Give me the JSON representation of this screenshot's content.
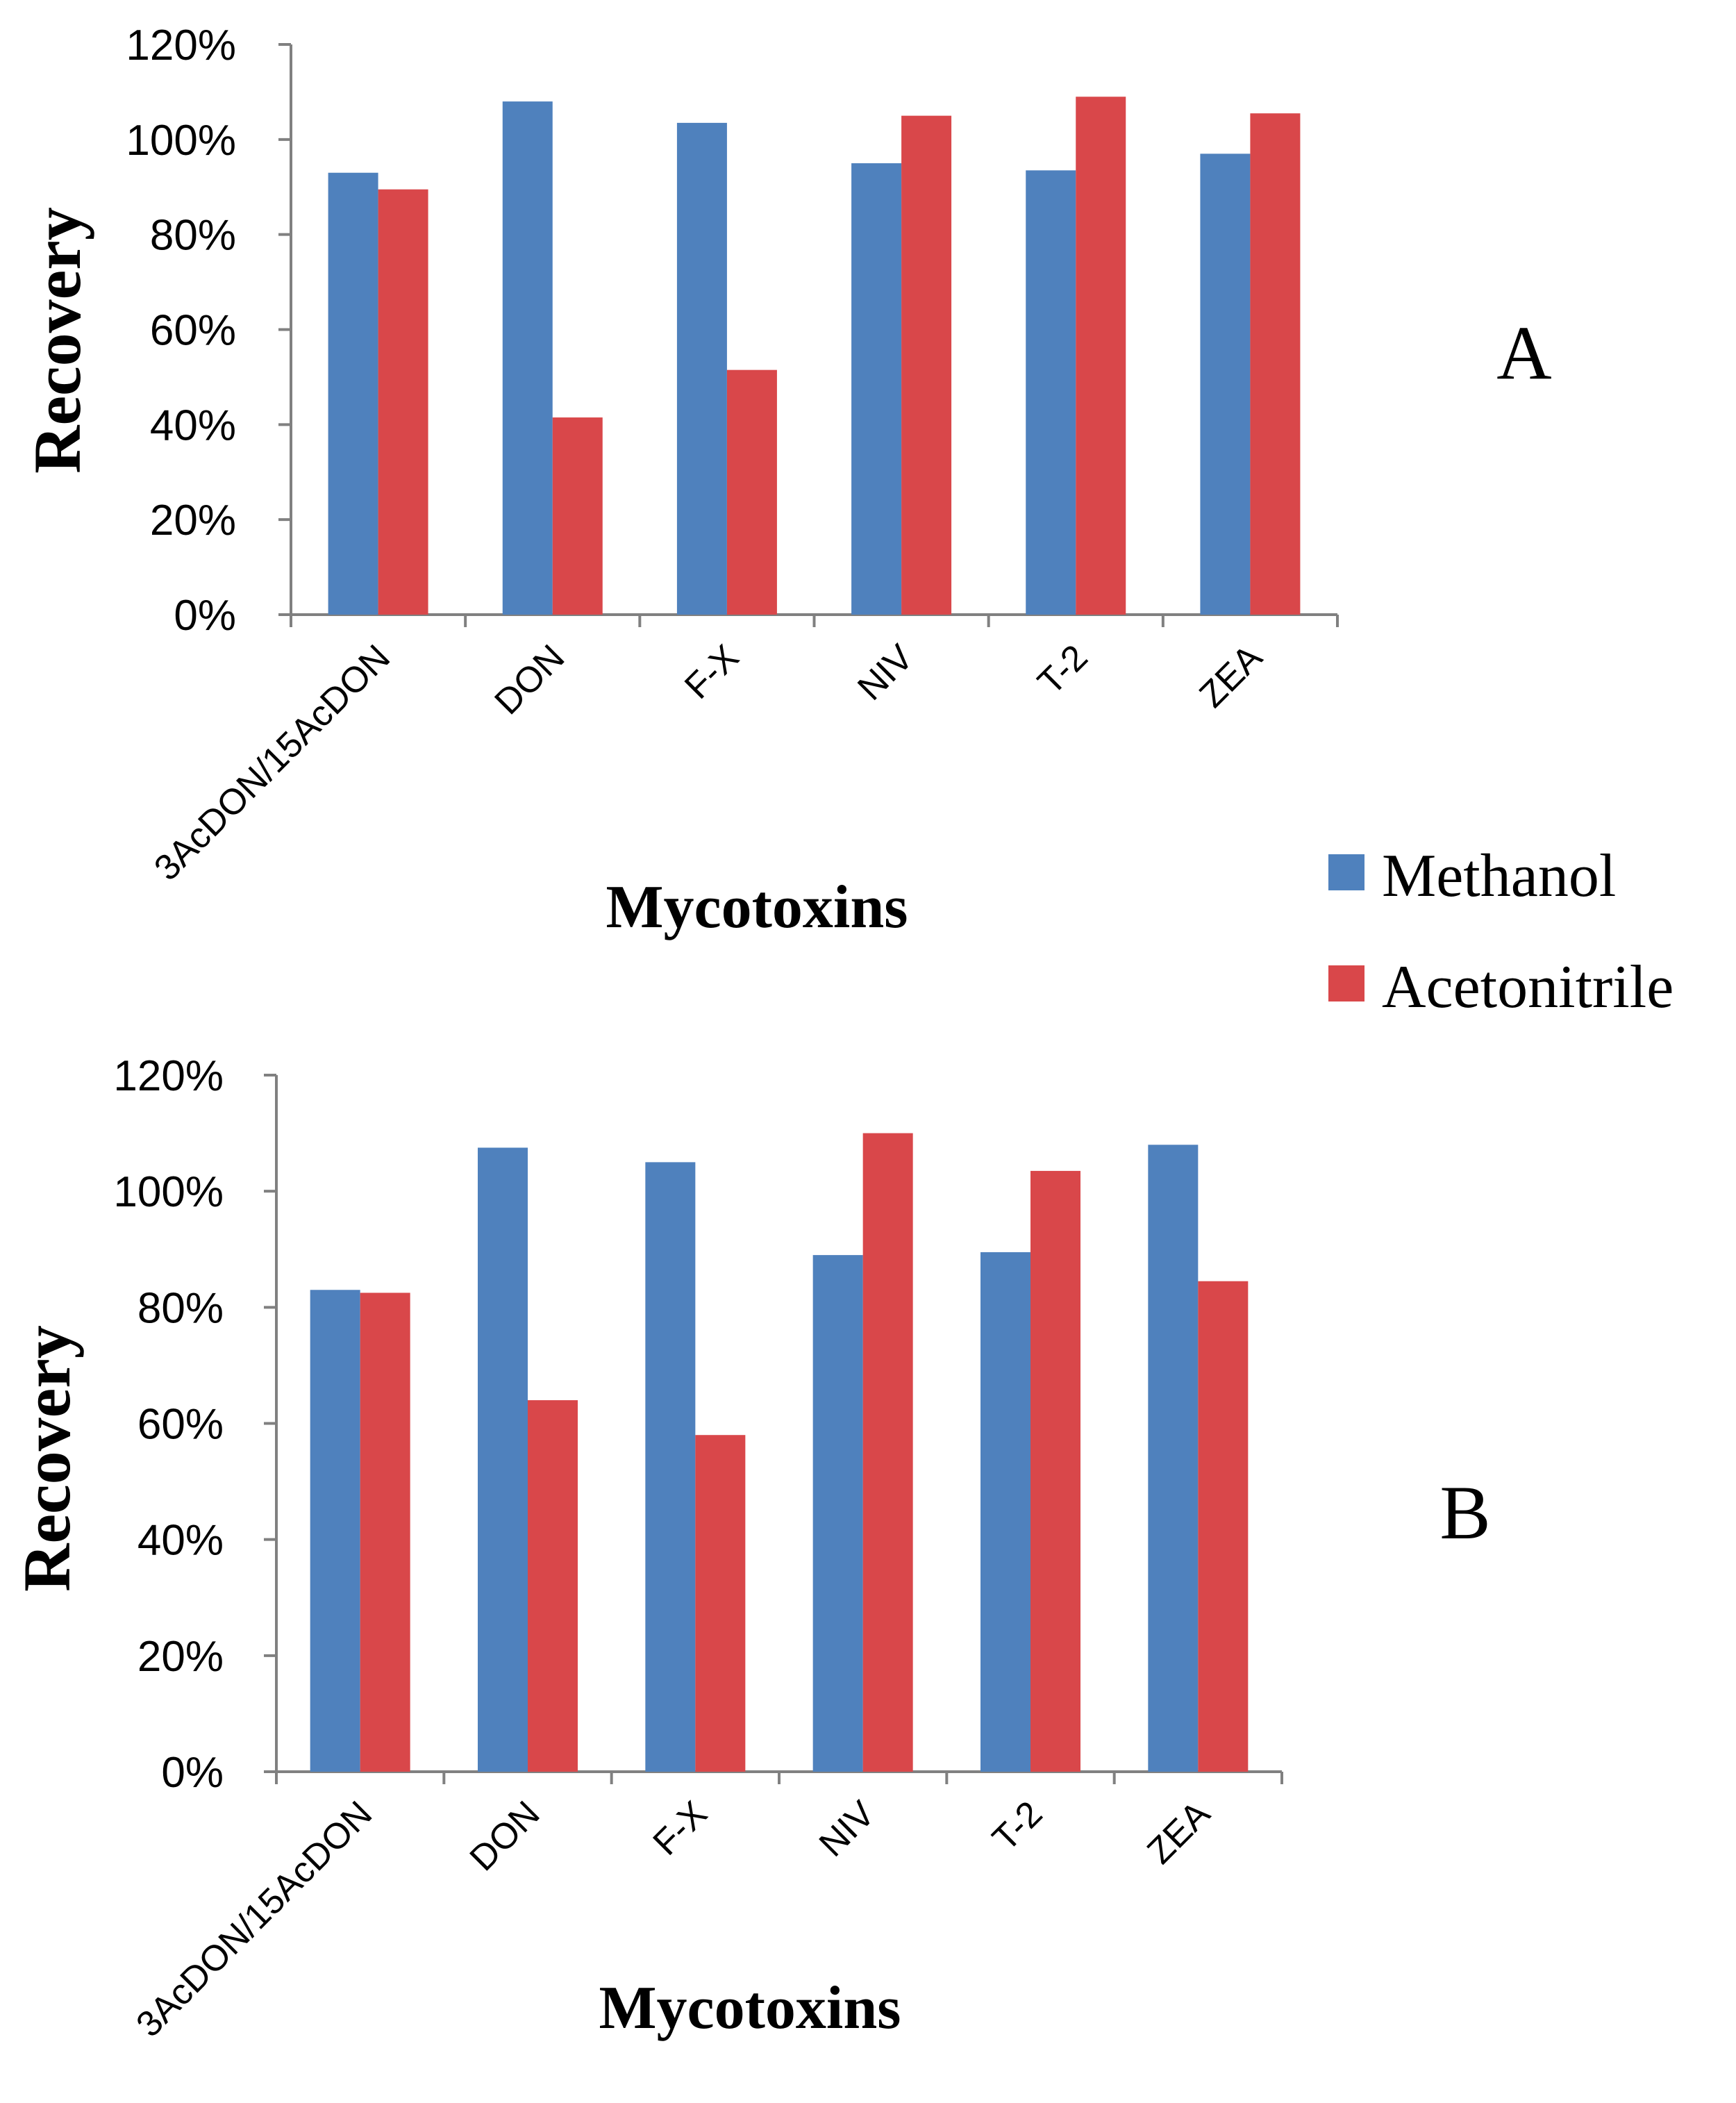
{
  "chart_data": [
    {
      "type": "bar",
      "panel_label": "A",
      "categories": [
        "3AcDON/15AcDON",
        "DON",
        "F-X",
        "NIV",
        "T-2",
        "ZEA"
      ],
      "series": [
        {
          "name": "Methanol",
          "values": [
            93,
            108,
            103.5,
            95,
            93.5,
            97
          ]
        },
        {
          "name": "Acetonitrile",
          "values": [
            89.5,
            41.5,
            51.5,
            105,
            109,
            105.5
          ]
        }
      ],
      "xlabel": "Mycotoxins",
      "ylabel": "Recovery",
      "ylim": [
        0,
        120
      ],
      "yticks": [
        "0%",
        "20%",
        "40%",
        "60%",
        "80%",
        "100%",
        "120%"
      ],
      "grid": false
    },
    {
      "type": "bar",
      "panel_label": "B",
      "categories": [
        "3AcDON/15AcDON",
        "DON",
        "F-X",
        "NIV",
        "T-2",
        "ZEA"
      ],
      "series": [
        {
          "name": "Methanol",
          "values": [
            83,
            107.5,
            105,
            89,
            89.5,
            108
          ]
        },
        {
          "name": "Acetonitrile",
          "values": [
            82.5,
            64,
            58,
            110,
            103.5,
            84.5
          ]
        }
      ],
      "xlabel": "Mycotoxins",
      "ylabel": "Recovery",
      "ylim": [
        0,
        120
      ],
      "yticks": [
        "0%",
        "20%",
        "40%",
        "60%",
        "80%",
        "100%",
        "120%"
      ],
      "grid": false
    }
  ],
  "legend": {
    "items": [
      {
        "label": "Methanol",
        "color": "#4f81bd"
      },
      {
        "label": "Acetonitrile",
        "color": "#d9474a"
      }
    ]
  },
  "colors": {
    "methanol": "#4f81bd",
    "acetonitrile": "#d9474a",
    "axis": "#808080"
  }
}
